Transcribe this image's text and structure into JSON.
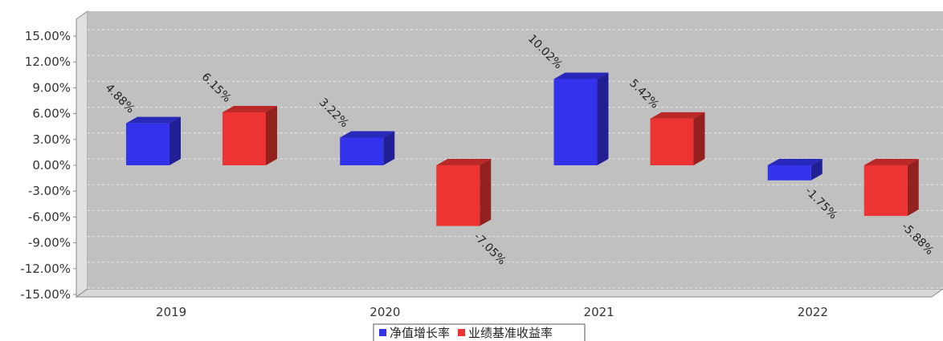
{
  "chart_data": {
    "type": "bar",
    "categories": [
      "2019",
      "2020",
      "2021",
      "2022"
    ],
    "series": [
      {
        "name": "净值增长率",
        "values": [
          4.88,
          3.22,
          10.02,
          -1.75
        ],
        "labels": [
          "4.88%",
          "3.22%",
          "10.02%",
          "-1.75%"
        ],
        "color": "#3333ee"
      },
      {
        "name": "业绩基准收益率",
        "values": [
          6.15,
          -7.05,
          5.42,
          -5.88
        ],
        "labels": [
          "6.15%",
          "-7.05%",
          "5.42%",
          "-5.88%"
        ],
        "color": "#ee3333"
      }
    ],
    "yticks": [
      "15.00%",
      "12.00%",
      "9.00%",
      "6.00%",
      "3.00%",
      "0.00%",
      "-3.00%",
      "-6.00%",
      "-9.00%",
      "-12.00%",
      "-15.00%"
    ],
    "ylim": [
      -15,
      15
    ],
    "grid": true,
    "legend": "bottom-center",
    "plot_background": "#c0c0c0"
  }
}
